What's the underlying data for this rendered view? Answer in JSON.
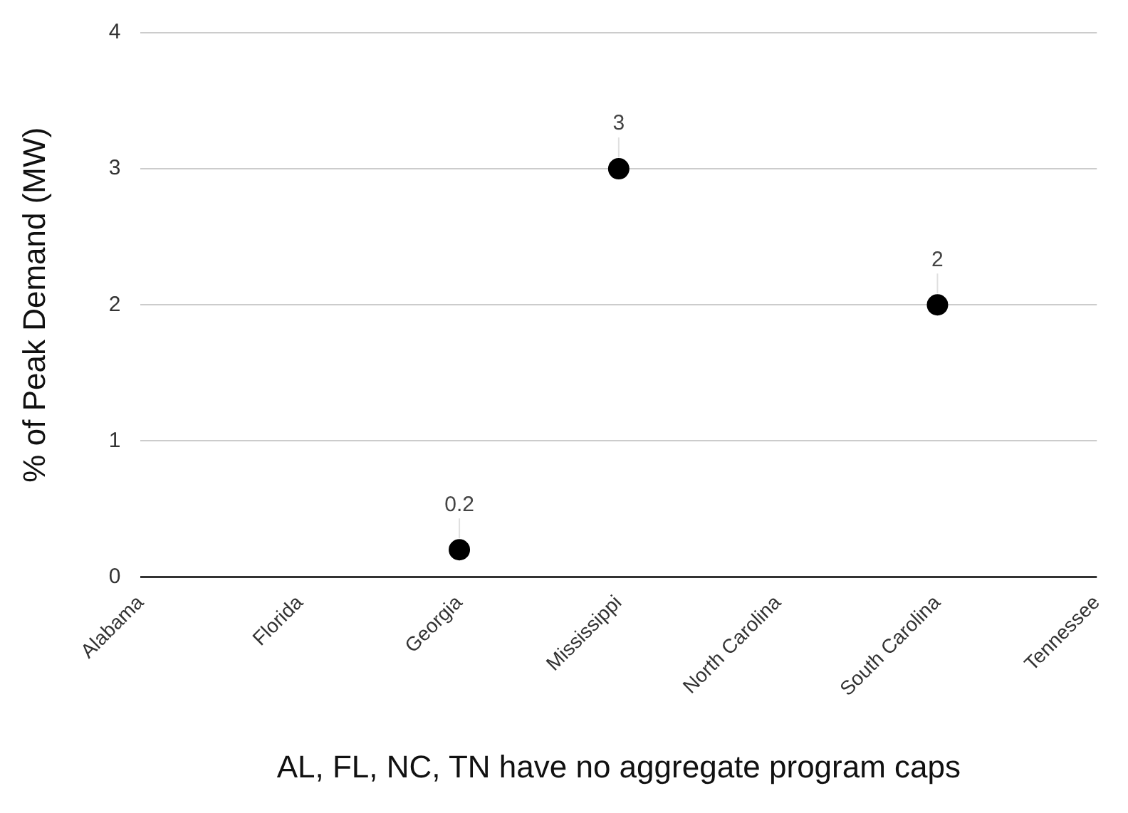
{
  "chart_data": {
    "type": "scatter",
    "ylabel": "% of Peak Demand (MW)",
    "xlabel": "AL, FL, NC, TN have no aggregate program caps",
    "categories": [
      "Alabama",
      "Florida",
      "Georgia",
      "Mississippi",
      "North Carolina",
      "South Carolina",
      "Tennessee"
    ],
    "values": [
      null,
      null,
      0.2,
      3,
      null,
      2,
      null
    ],
    "color": "#000000",
    "ylim": [
      0,
      4
    ],
    "yticks": [
      0,
      1,
      2,
      3,
      4
    ],
    "grid": "y",
    "legend": false,
    "marker": "circle",
    "data_labels": true
  }
}
